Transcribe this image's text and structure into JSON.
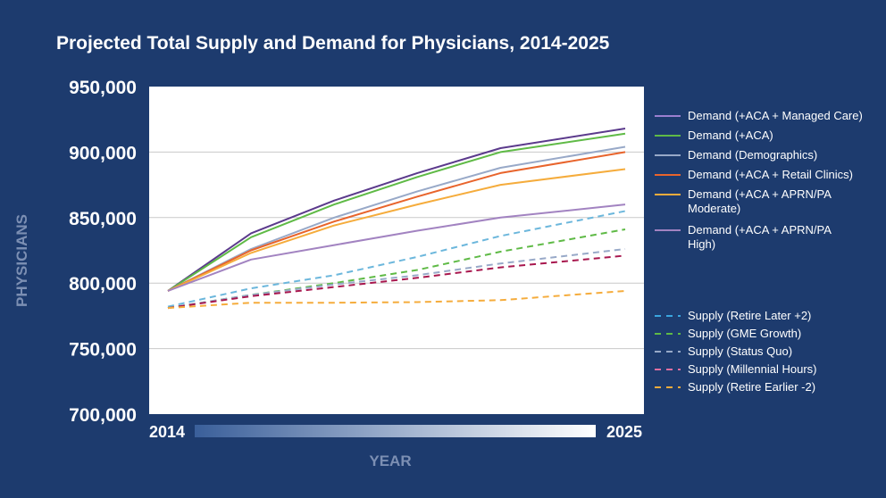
{
  "page": {
    "background": "#1d3b6e",
    "plot_background": "#ffffff",
    "text_color": "#ffffff",
    "muted_text_color": "#7c8fb3",
    "grid_color": "#c9c9c9"
  },
  "chart_data": {
    "type": "line",
    "title": "Projected Total Supply and Demand for Physicians, 2014-2025",
    "xlabel": "YEAR",
    "ylabel": "PHYSICIANS",
    "x": [
      2014,
      2016,
      2018,
      2020,
      2022,
      2025
    ],
    "xlim": [
      2014,
      2025
    ],
    "x_tick_labels": [
      "2014",
      "2025"
    ],
    "ylim": [
      700000,
      950000
    ],
    "y_ticks": [
      700000,
      750000,
      800000,
      850000,
      900000,
      950000
    ],
    "y_tick_labels": [
      "700,000",
      "750,000",
      "800,000",
      "850,000",
      "900,000",
      "950,000"
    ],
    "legend_position": "right",
    "series": [
      {
        "name": "Demand (+ACA + Managed Care)",
        "color": "#5b3a8c",
        "dash": "solid",
        "values": [
          794000,
          838000,
          863000,
          884000,
          903000,
          918000
        ]
      },
      {
        "name": "Demand (+ACA)",
        "color": "#5fba46",
        "dash": "solid",
        "values": [
          794000,
          835000,
          860000,
          881000,
          900000,
          914000
        ]
      },
      {
        "name": "Demand (Demographics)",
        "color": "#98a9c8",
        "dash": "solid",
        "values": [
          794000,
          826000,
          850000,
          870000,
          888000,
          904000
        ]
      },
      {
        "name": "Demand (+ACA + Retail Clinics)",
        "color": "#e8642c",
        "dash": "solid",
        "values": [
          794000,
          825000,
          847000,
          866000,
          884000,
          900000
        ]
      },
      {
        "name": "Demand (+ACA + APRN/PA Moderate)",
        "color": "#f5ac3c",
        "dash": "solid",
        "values": [
          794000,
          823000,
          844000,
          860000,
          875000,
          887000
        ]
      },
      {
        "name": "Demand (+ACA + APRN/PA High)",
        "color": "#a283c1",
        "dash": "solid",
        "values": [
          794000,
          818000,
          829000,
          840000,
          850000,
          860000
        ]
      },
      {
        "name": "Supply (Retire Later +2)",
        "color": "#6cb7dc",
        "dash": "dashed",
        "values": [
          782000,
          796000,
          806000,
          820000,
          836000,
          855000
        ]
      },
      {
        "name": "Supply (GME Growth)",
        "color": "#5fba46",
        "dash": "dashed",
        "values": [
          781000,
          791000,
          800000,
          810000,
          824000,
          841000
        ]
      },
      {
        "name": "Supply (Status Quo)",
        "color": "#98a9c8",
        "dash": "dashed",
        "values": [
          781000,
          791000,
          799000,
          806000,
          815000,
          826000
        ]
      },
      {
        "name": "Supply (Millennial Hours)",
        "color": "#a8174e",
        "dash": "dashed",
        "values": [
          781000,
          790000,
          797000,
          804000,
          812000,
          821000
        ]
      },
      {
        "name": "Supply (Retire Earlier -2)",
        "color": "#f5ac3c",
        "dash": "dashed",
        "values": [
          781000,
          785000,
          785000,
          785500,
          787000,
          794000
        ]
      }
    ],
    "legend_lines": [
      {
        "series": 0,
        "lines": [
          "Demand (+ACA + Managed Care)"
        ],
        "legend_color": "#9c7fd0"
      },
      {
        "series": 1,
        "lines": [
          "Demand (+ACA)"
        ],
        "legend_color": "#5fba46"
      },
      {
        "series": 2,
        "lines": [
          "Demand (Demographics)"
        ],
        "legend_color": "#98a9c8"
      },
      {
        "series": 3,
        "lines": [
          "Demand (+ACA + Retail Clinics)"
        ],
        "legend_color": "#e8642c"
      },
      {
        "series": 4,
        "lines": [
          "Demand (+ACA + APRN/PA",
          "Moderate)"
        ],
        "legend_color": "#f5ac3c"
      },
      {
        "series": 5,
        "lines": [
          "Demand (+ACA + APRN/PA",
          "High)"
        ],
        "legend_color": "#a283c1"
      },
      {
        "series": 6,
        "lines": [
          "Supply (Retire Later +2)"
        ],
        "legend_color": "#3aa6e0"
      },
      {
        "series": 7,
        "lines": [
          "Supply (GME Growth)"
        ],
        "legend_color": "#5fba46"
      },
      {
        "series": 8,
        "lines": [
          "Supply (Status Quo)"
        ],
        "legend_color": "#98a9c8"
      },
      {
        "series": 9,
        "lines": [
          "Supply (Millennial Hours)"
        ],
        "legend_color": "#e06fa0"
      },
      {
        "series": 10,
        "lines": [
          "Supply (Retire Earlier -2)"
        ],
        "legend_color": "#f5ac3c"
      }
    ]
  }
}
